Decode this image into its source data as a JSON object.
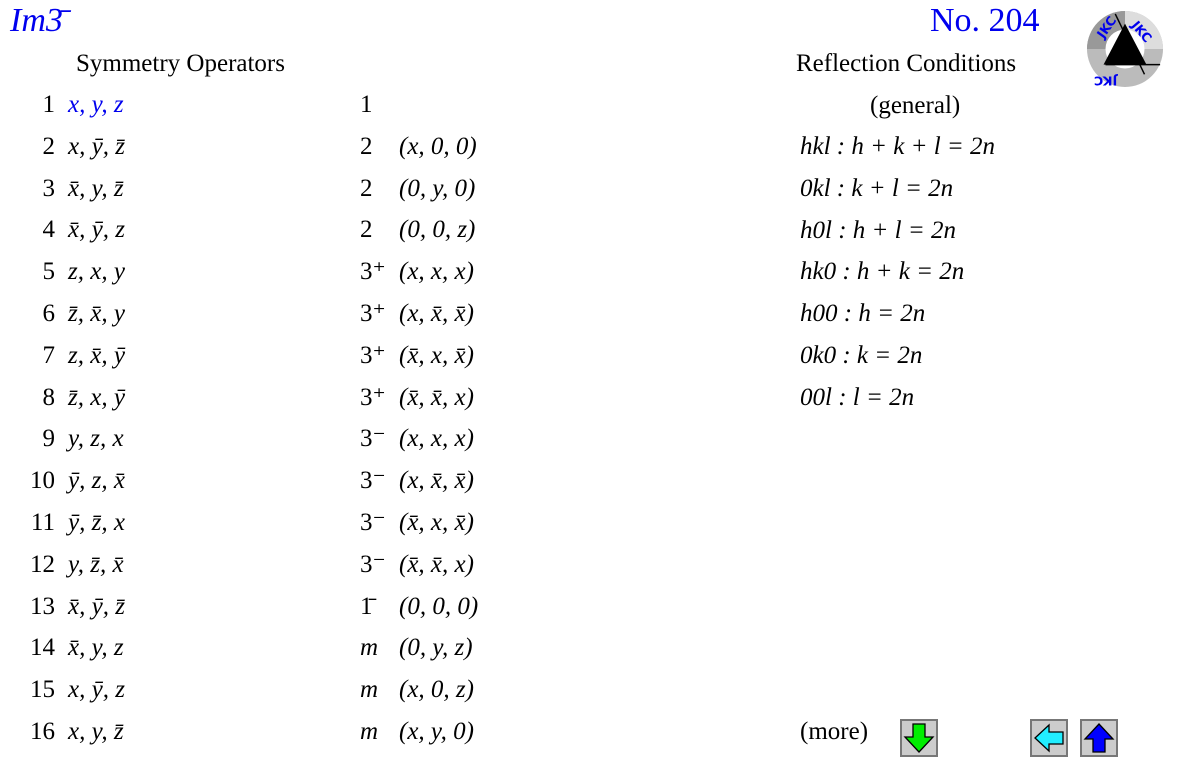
{
  "header": {
    "space_group": "Im3̄",
    "number": "No. 204"
  },
  "symmetry": {
    "title": "Symmetry Operators",
    "rows": [
      {
        "n": "1",
        "coord": "x, y, z",
        "op": "1",
        "loc": ""
      },
      {
        "n": "2",
        "coord": "x, ȳ, z̄",
        "op": "2",
        "loc": "(x, 0, 0)"
      },
      {
        "n": "3",
        "coord": "x̄, y, z̄",
        "op": "2",
        "loc": "(0, y, 0)"
      },
      {
        "n": "4",
        "coord": "x̄, ȳ, z",
        "op": "2",
        "loc": "(0, 0, z)"
      },
      {
        "n": "5",
        "coord": "z, x, y",
        "op": "3⁺",
        "loc": "(x, x, x)"
      },
      {
        "n": "6",
        "coord": "z̄, x̄, y",
        "op": "3⁺",
        "loc": "(x, x̄, x̄)"
      },
      {
        "n": "7",
        "coord": "z, x̄, ȳ",
        "op": "3⁺",
        "loc": "(x̄, x, x̄)"
      },
      {
        "n": "8",
        "coord": "z̄, x, ȳ",
        "op": "3⁺",
        "loc": "(x̄, x̄, x)"
      },
      {
        "n": "9",
        "coord": "y, z, x",
        "op": "3⁻",
        "loc": "(x, x, x)"
      },
      {
        "n": "10",
        "coord": "ȳ, z, x̄",
        "op": "3⁻",
        "loc": "(x, x̄, x̄)"
      },
      {
        "n": "11",
        "coord": "ȳ, z̄, x",
        "op": "3⁻",
        "loc": "(x̄, x, x̄)"
      },
      {
        "n": "12",
        "coord": "y, z̄, x̄",
        "op": "3⁻",
        "loc": "(x̄, x̄, x)"
      },
      {
        "n": "13",
        "coord": "x̄, ȳ, z̄",
        "op": "1̄",
        "loc": "(0, 0, 0)"
      },
      {
        "n": "14",
        "coord": "x̄, y, z",
        "op": "m",
        "loc": "(0, y, z)"
      },
      {
        "n": "15",
        "coord": "x, ȳ, z",
        "op": "m",
        "loc": "(x, 0, z)"
      },
      {
        "n": "16",
        "coord": "x, y, z̄",
        "op": "m",
        "loc": "(x, y, 0)"
      }
    ]
  },
  "reflection": {
    "title": "Reflection Conditions",
    "subtitle": "(general)",
    "conditions": [
      "hkl :  h + k + l = 2n",
      "0kl :  k + l = 2n",
      "h0l :  h + l = 2n",
      "hk0 :  h + k = 2n",
      "h00 :  h = 2n",
      "0k0 :  k = 2n",
      "00l :  l = 2n"
    ],
    "more_label": "(more)"
  },
  "logo_text": "JKC",
  "colors": {
    "link": "#0000ee",
    "down": "#00ee00",
    "left": "#22eeff",
    "up": "#0000ff"
  },
  "icons": {
    "more": "arrow-down-icon",
    "back": "arrow-left-icon",
    "top": "arrow-up-icon"
  }
}
